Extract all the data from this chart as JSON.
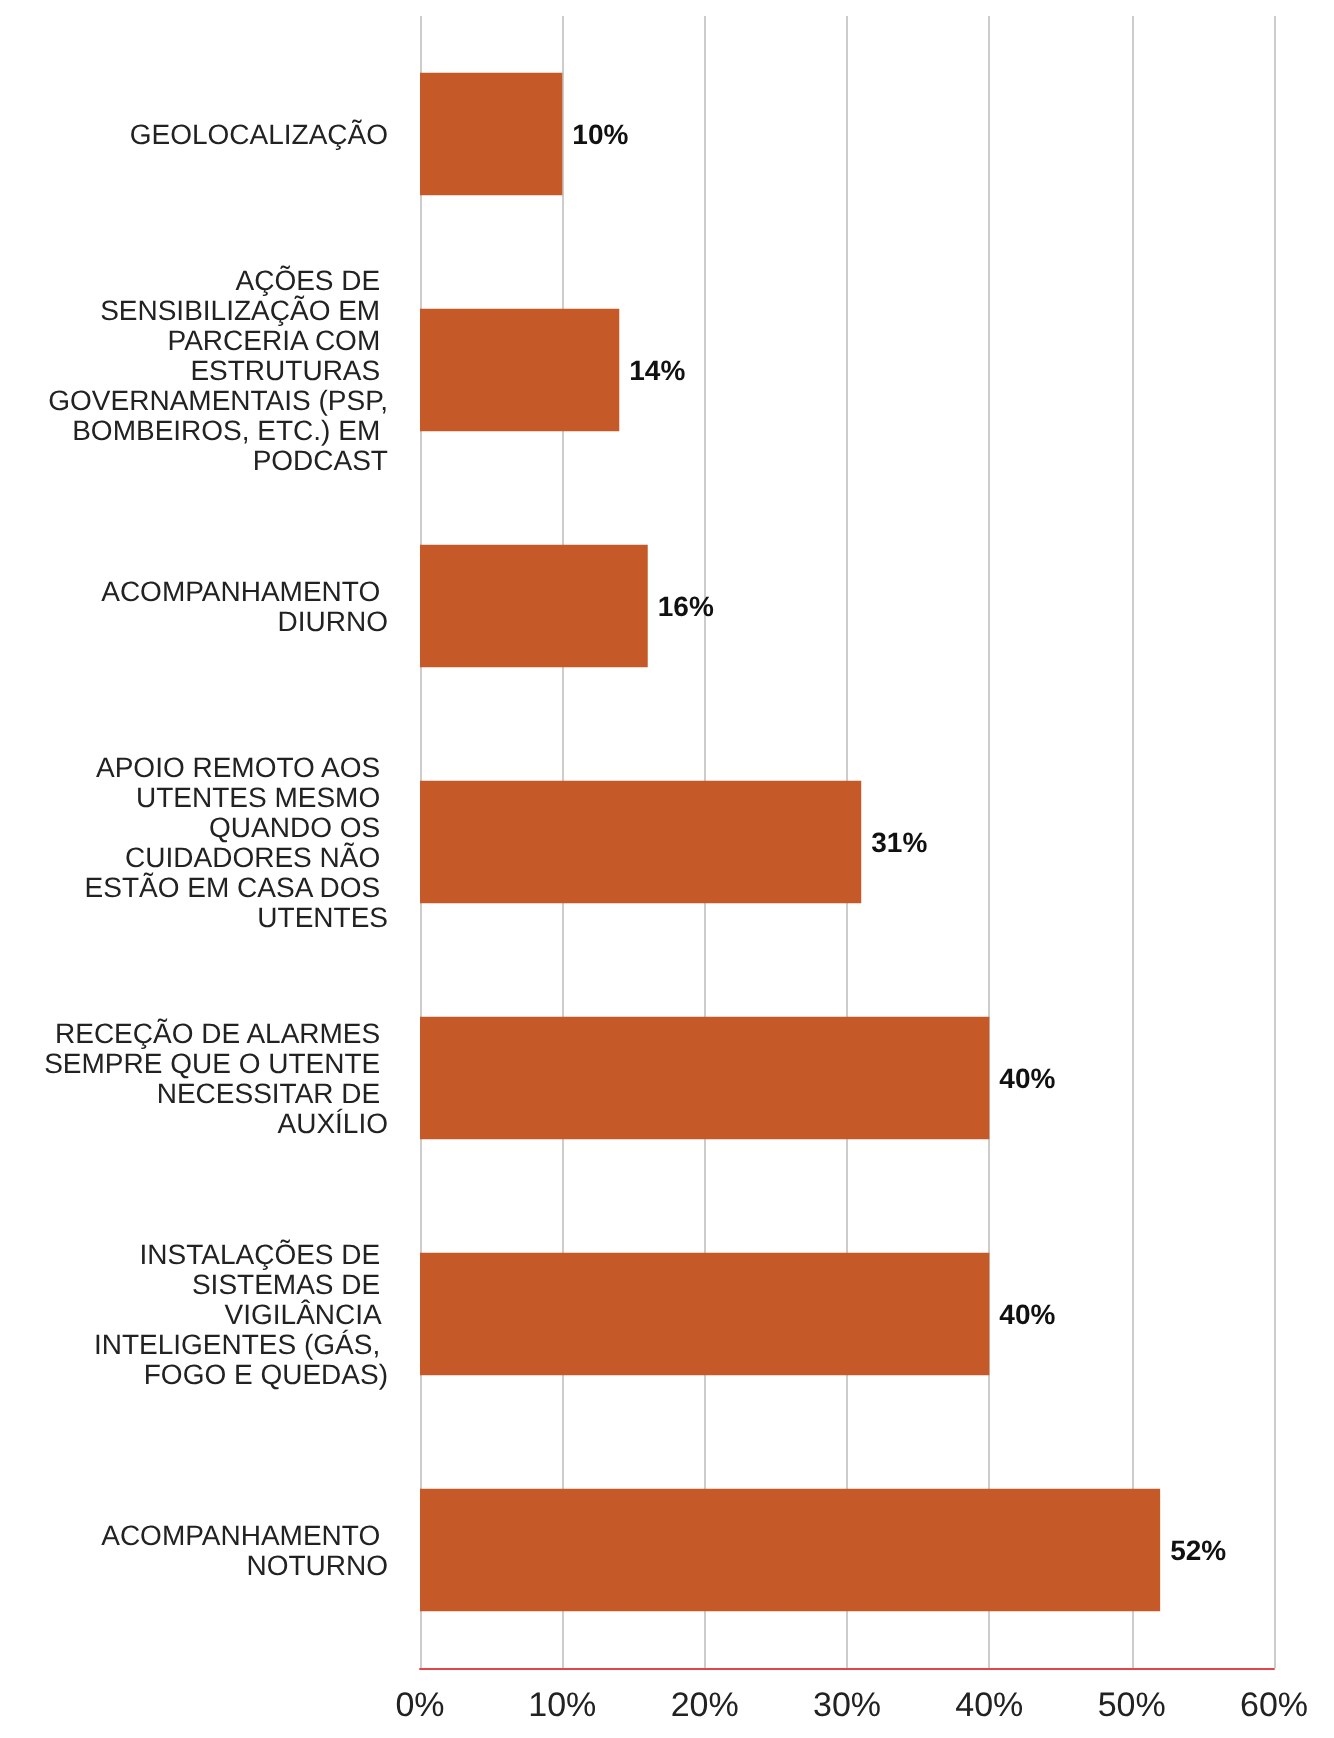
{
  "chart_data": {
    "type": "bar",
    "orientation": "horizontal",
    "categories": [
      "GEOLOCALIZAÇÃO",
      "AÇÕES DE SENSIBILIZAÇÃO EM PARCERIA COM ESTRUTURAS GOVERNAMENTAIS (PSP, BOMBEIROS, ETC.) EM PODCAST",
      "ACOMPANHAMENTO DIURNO",
      "APOIO REMOTO AOS UTENTES MESMO QUANDO OS CUIDADORES NÃO ESTÃO EM CASA DOS UTENTES",
      "RECEÇÃO DE ALARMES SEMPRE QUE O UTENTE NECESSITAR DE AUXÍLIO",
      "INSTALAÇÕES DE SISTEMAS DE VIGILÂNCIA INTELIGENTES (GÁS, FOGO E QUEDAS)",
      "ACOMPANHAMENTO NOTURNO"
    ],
    "values": [
      10,
      14,
      16,
      31,
      40,
      40,
      52
    ],
    "value_labels": [
      "10%",
      "14%",
      "16%",
      "31%",
      "40%",
      "40%",
      "52%"
    ],
    "color": "#c55a28",
    "xlim": [
      0,
      60
    ],
    "xticks": [
      {
        "value": 0,
        "label": "0%"
      },
      {
        "value": 10,
        "label": "10%"
      },
      {
        "value": 20,
        "label": "20%"
      },
      {
        "value": 30,
        "label": "30%"
      },
      {
        "value": 40,
        "label": "40%"
      },
      {
        "value": 50,
        "label": "50%"
      },
      {
        "value": 60,
        "label": "60%"
      }
    ],
    "grid": "x"
  }
}
